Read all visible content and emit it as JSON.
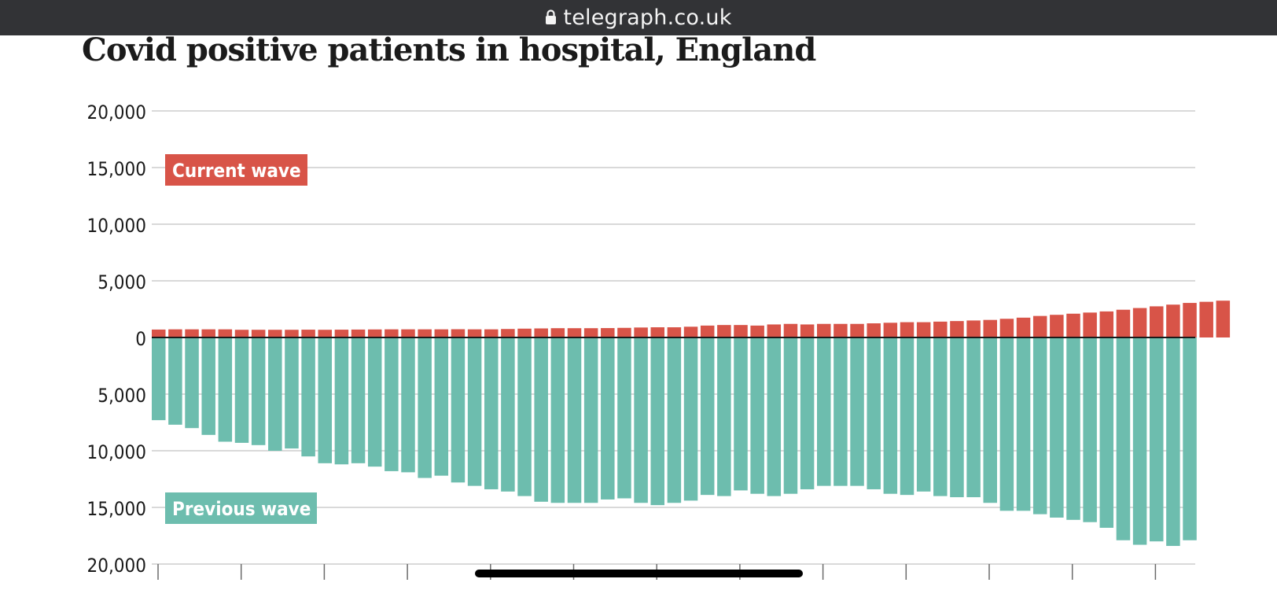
{
  "browser": {
    "url": "telegraph.co.uk",
    "lock_icon": "lock-icon"
  },
  "colors": {
    "url_bar": "#323336",
    "current_wave": "#d85448",
    "previous_wave": "#6dbdae",
    "gridline": "#d9d9d9",
    "axis": "#1a1a1a"
  },
  "chart_data": {
    "type": "bar",
    "title": "Covid positive patients in hospital, England",
    "xlabel": "",
    "ylabel": "",
    "ylim": [
      -20000,
      20000
    ],
    "y_ticks": [
      {
        "value": 20000,
        "label": "20,000"
      },
      {
        "value": 15000,
        "label": "15,000"
      },
      {
        "value": 10000,
        "label": "10,000"
      },
      {
        "value": 5000,
        "label": "5,000"
      },
      {
        "value": 0,
        "label": "0"
      },
      {
        "value": -5000,
        "label": "5,000"
      },
      {
        "value": -10000,
        "label": "10,000"
      },
      {
        "value": -15000,
        "label": "15,000"
      },
      {
        "value": -20000,
        "label": "20,000"
      }
    ],
    "grid": true,
    "legend": [
      "top-left",
      "bottom-left"
    ],
    "series": [
      {
        "name": "Current wave",
        "direction": "up",
        "values": [
          700,
          720,
          720,
          720,
          720,
          680,
          680,
          680,
          680,
          690,
          680,
          690,
          700,
          710,
          720,
          720,
          720,
          720,
          730,
          720,
          720,
          750,
          780,
          800,
          820,
          820,
          820,
          830,
          850,
          880,
          900,
          900,
          950,
          1050,
          1100,
          1100,
          1050,
          1150,
          1200,
          1150,
          1200,
          1200,
          1200,
          1250,
          1300,
          1350,
          1350,
          1400,
          1450,
          1500,
          1550,
          1650,
          1750,
          1900,
          2000,
          2100,
          2200,
          2300,
          2450,
          2600,
          2750,
          2900,
          3050,
          3150,
          3250
        ]
      },
      {
        "name": "Previous wave",
        "direction": "down",
        "values": [
          7300,
          7700,
          8000,
          8600,
          9200,
          9300,
          9500,
          10000,
          9800,
          10500,
          11100,
          11200,
          11100,
          11400,
          11800,
          11900,
          12400,
          12200,
          12800,
          13100,
          13400,
          13600,
          14000,
          14500,
          14600,
          14600,
          14600,
          14300,
          14200,
          14600,
          14800,
          14600,
          14400,
          13900,
          14000,
          13500,
          13800,
          14000,
          13800,
          13400,
          13100,
          13100,
          13100,
          13400,
          13800,
          13900,
          13600,
          14000,
          14100,
          14100,
          14600,
          15300,
          15300,
          15600,
          15900,
          16100,
          16300,
          16800,
          17900,
          18300,
          18000,
          18400,
          17900
        ]
      }
    ],
    "x_tick_count": 13
  }
}
